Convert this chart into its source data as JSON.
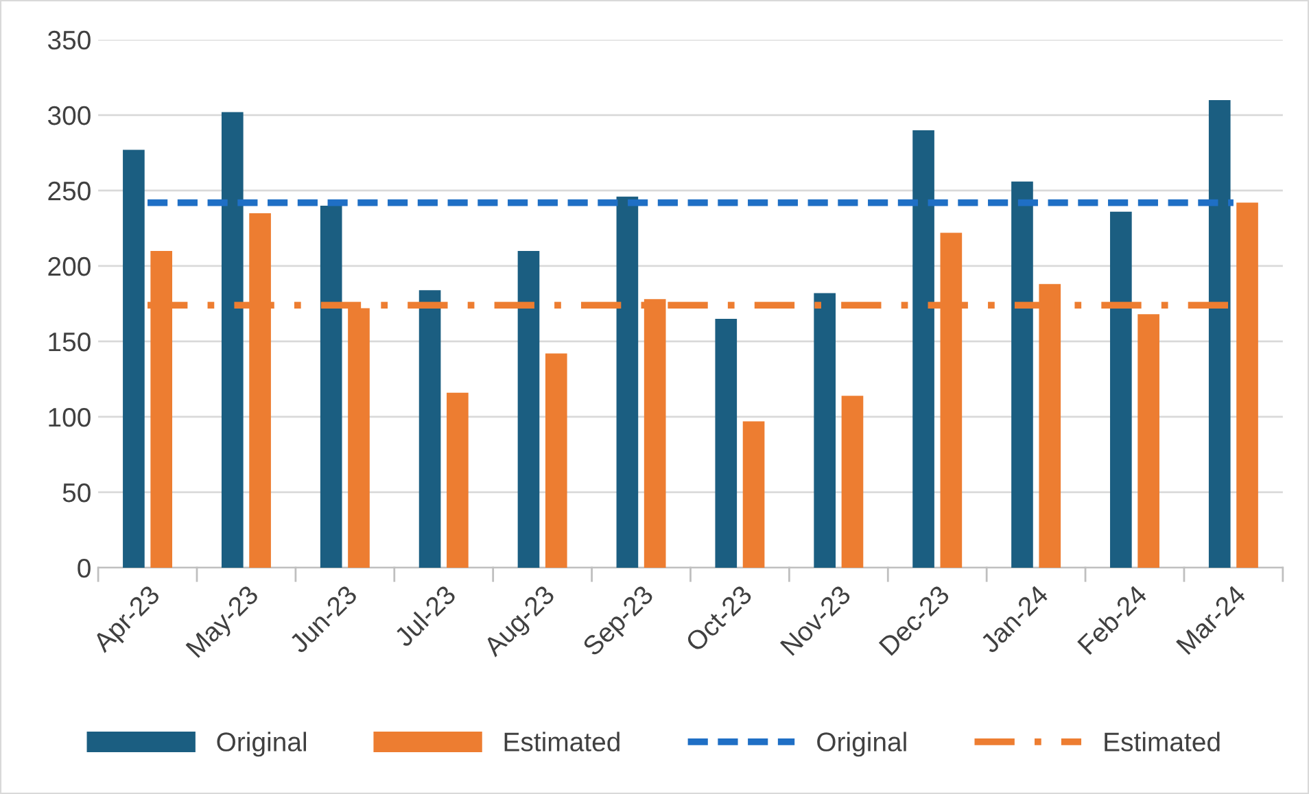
{
  "chart_data": {
    "type": "bar",
    "categories": [
      "Apr-23",
      "May-23",
      "Jun-23",
      "Jul-23",
      "Aug-23",
      "Sep-23",
      "Oct-23",
      "Nov-23",
      "Dec-23",
      "Jan-24",
      "Feb-24",
      "Mar-24"
    ],
    "series": [
      {
        "name": "Original",
        "color": "#1b5e81",
        "values": [
          277,
          302,
          240,
          184,
          210,
          246,
          165,
          182,
          290,
          256,
          236,
          310
        ]
      },
      {
        "name": "Estimated",
        "color": "#ed7d31",
        "values": [
          210,
          235,
          172,
          116,
          142,
          178,
          97,
          114,
          222,
          188,
          168,
          242
        ]
      },
      {
        "name": "Original",
        "type": "line",
        "color": "#1f6fc5",
        "line_style": "dashed",
        "values": [
          242,
          242,
          242,
          242,
          242,
          242,
          242,
          242,
          242,
          242,
          242,
          242
        ]
      },
      {
        "name": "Estimated",
        "type": "line",
        "color": "#ed7d31",
        "line_style": "dashdot",
        "values": [
          174,
          174,
          174,
          174,
          174,
          174,
          174,
          174,
          174,
          174,
          174,
          174
        ]
      }
    ],
    "ylim": [
      0,
      350
    ],
    "yticks": [
      0,
      50,
      100,
      150,
      200,
      250,
      300,
      350
    ],
    "grid": "y",
    "legend": "bottom",
    "marker": "none"
  }
}
